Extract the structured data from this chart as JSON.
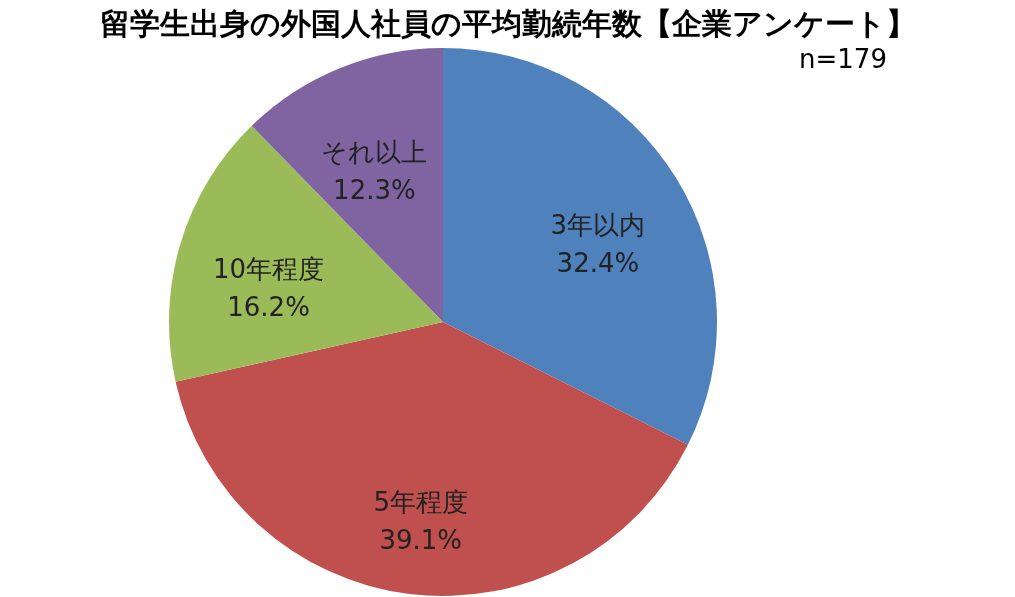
{
  "chart_data": {
    "type": "pie",
    "title": "留学生出身の外国人社員の平均勤続年数【企業アンケート】",
    "subtitle": "n=179",
    "categories": [
      "3年以内",
      "5年程度",
      "10年程度",
      "それ以上"
    ],
    "values": [
      32.4,
      39.1,
      16.2,
      12.3
    ],
    "colors": [
      "#4f81bd",
      "#c0504d",
      "#9bbb59",
      "#8064a2"
    ],
    "value_labels": [
      "32.4%",
      "39.1%",
      "16.2%",
      "12.3%"
    ],
    "legend": false
  }
}
